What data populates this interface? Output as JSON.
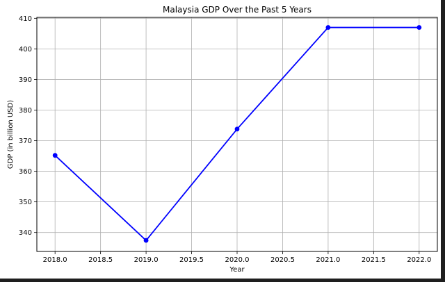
{
  "chart_data": {
    "type": "line",
    "title": "Malaysia GDP Over the Past 5 Years",
    "xlabel": "Year",
    "ylabel": "GDP (in billion USD)",
    "x": [
      2018.0,
      2019.0,
      2020.0,
      2021.0,
      2022.0
    ],
    "y": [
      365.2,
      337.4,
      373.8,
      407.0,
      407.0
    ],
    "xlim": [
      2017.8,
      2022.2
    ],
    "ylim": [
      333.8,
      410.3
    ],
    "xticks": [
      2018.0,
      2018.5,
      2019.0,
      2019.5,
      2020.0,
      2020.5,
      2021.0,
      2021.5,
      2022.0
    ],
    "xtick_labels": [
      "2018.0",
      "2018.5",
      "2019.0",
      "2019.5",
      "2020.0",
      "2020.5",
      "2021.0",
      "2021.5",
      "2022.0"
    ],
    "yticks": [
      340,
      350,
      360,
      370,
      380,
      390,
      400,
      410
    ],
    "ytick_labels": [
      "340",
      "350",
      "360",
      "370",
      "380",
      "390",
      "400",
      "410"
    ],
    "grid": true,
    "marker": "circle",
    "line_color": "#0000ff"
  }
}
